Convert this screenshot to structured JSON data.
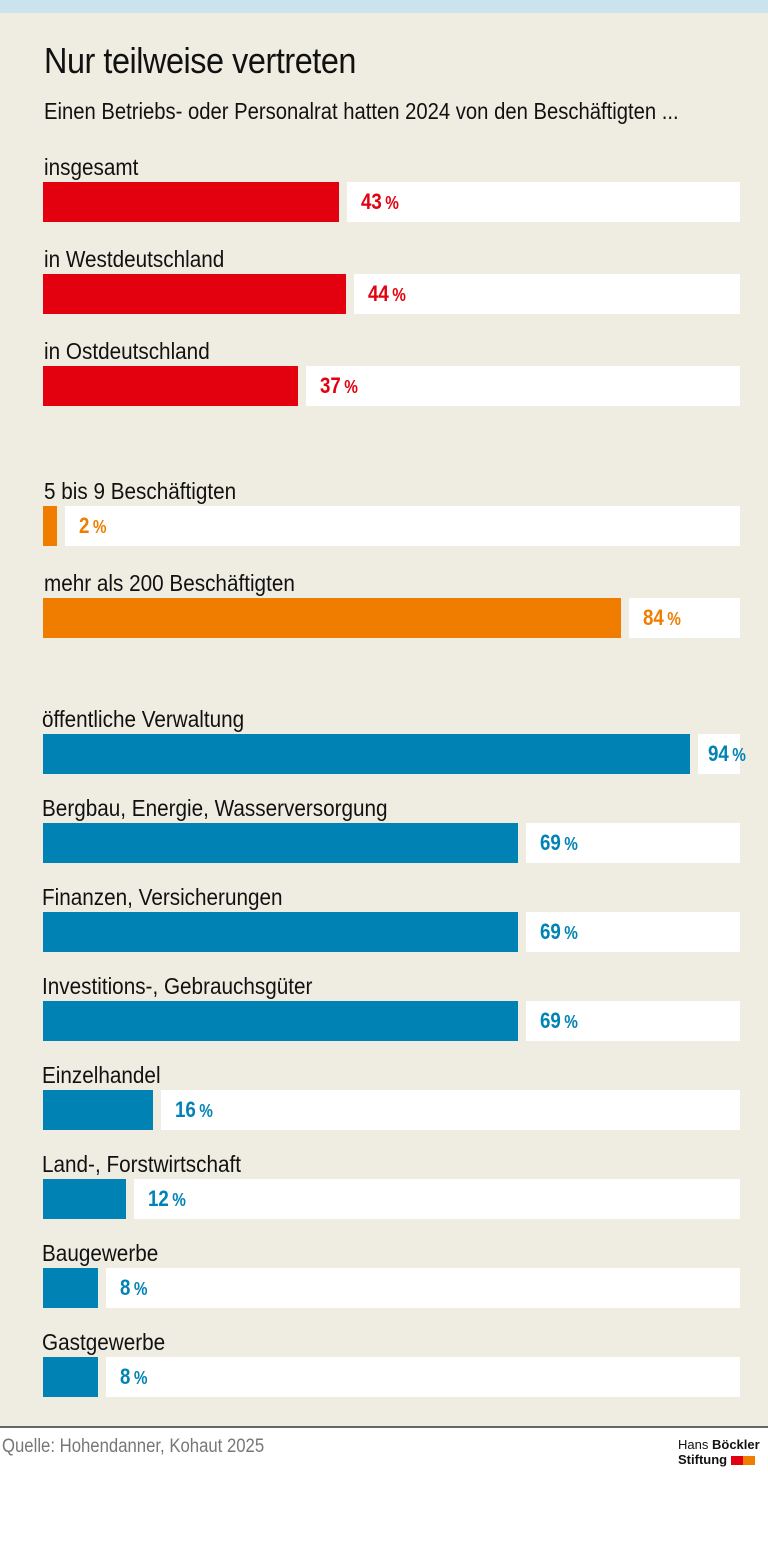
{
  "chart_data": {
    "type": "bar",
    "orientation": "horizontal",
    "title": "Nur teilweise vertreten",
    "subtitle": "Einen Betriebs- oder Personalrat hatten 2024 von den Beschäftigten ...",
    "xlim": [
      0,
      100
    ],
    "unit": "%",
    "grid": false,
    "groups": [
      {
        "color": "#e3000f",
        "categories": [
          "insgesamt",
          "in Westdeutschland",
          "in Ostdeutschland"
        ],
        "values": [
          43,
          44,
          37
        ]
      },
      {
        "color": "#f07d00",
        "categories": [
          "5 bis 9 Beschäftigten",
          "mehr als 200 Beschäftigten"
        ],
        "values": [
          2,
          84
        ]
      },
      {
        "color": "#0083b4",
        "categories": [
          "öffentliche Verwaltung",
          "Bergbau, Energie, Wasserversorgung",
          "Finanzen, Versicherungen",
          "Investitions-, Gebrauchsgüter",
          "Einzelhandel",
          "Land-, Forstwirtschaft",
          "Baugewerbe",
          "Gastgewerbe"
        ],
        "values": [
          94,
          69,
          69,
          69,
          16,
          12,
          8,
          8
        ]
      }
    ]
  },
  "footer": {
    "source": "Quelle: Hohendanner, Kohaut 2025",
    "logo_line1_light": "Hans",
    "logo_line1_bold": "Böckler",
    "logo_line2": "Stiftung",
    "logo_colors": [
      "#e3000f",
      "#f07d00"
    ]
  }
}
